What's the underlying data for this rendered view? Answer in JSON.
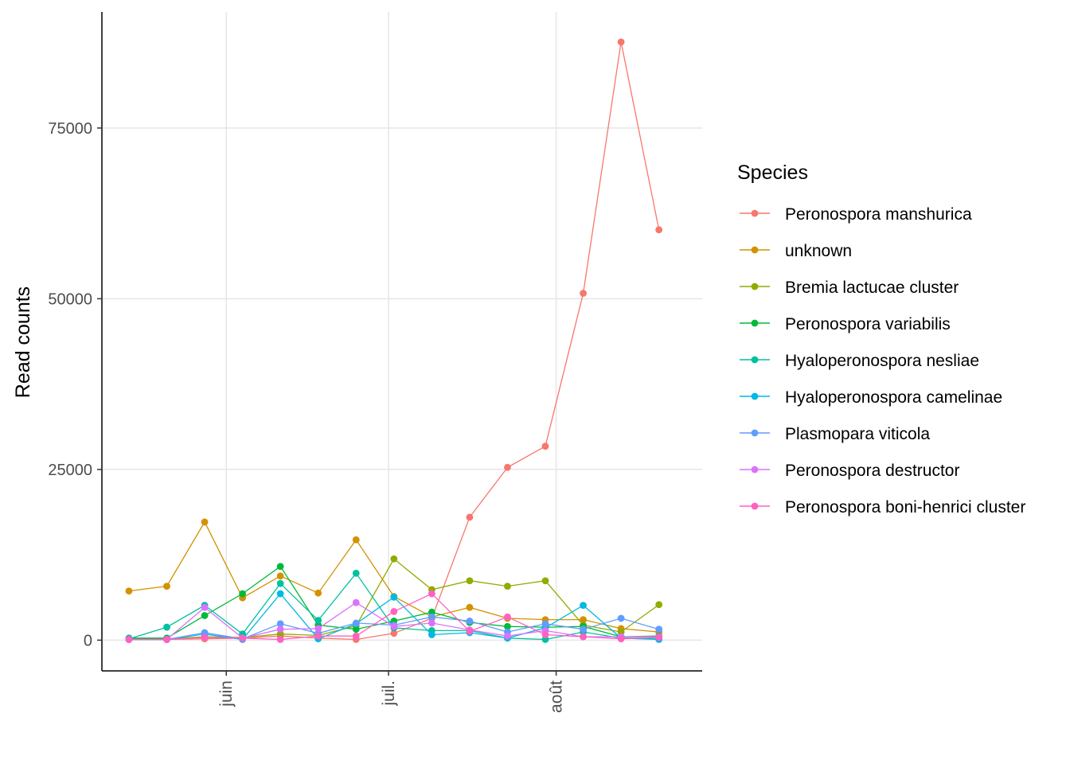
{
  "chart_data": {
    "type": "line",
    "ylabel": "Read counts",
    "ylim": [
      -4500,
      92000
    ],
    "yticks": [
      0,
      25000,
      50000,
      75000
    ],
    "xlim": [
      "2018-05-09",
      "2018-08-28"
    ],
    "xticks": [
      {
        "date": "2018-06-01",
        "label": "juin"
      },
      {
        "date": "2018-07-01",
        "label": "juil."
      },
      {
        "date": "2018-08-01",
        "label": "août"
      }
    ],
    "grid": true,
    "legend": {
      "title": "Species",
      "position": "right"
    },
    "x": [
      "2018-05-14",
      "2018-05-21",
      "2018-05-28",
      "2018-06-04",
      "2018-06-11",
      "2018-06-18",
      "2018-06-25",
      "2018-07-02",
      "2018-07-09",
      "2018-07-16",
      "2018-07-23",
      "2018-07-30",
      "2018-08-06",
      "2018-08-13",
      "2018-08-20"
    ],
    "series": [
      {
        "name": "Peronospora manshurica",
        "color": "#F8766D",
        "values": [
          100,
          100,
          200,
          300,
          600,
          300,
          100,
          1000,
          3200,
          18000,
          25300,
          28400,
          50800,
          87600,
          60100
        ]
      },
      {
        "name": "unknown",
        "color": "#D39200",
        "values": [
          7200,
          7900,
          17300,
          6200,
          9400,
          6900,
          14700,
          6400,
          3400,
          4800,
          3200,
          3000,
          3000,
          1700,
          1200
        ]
      },
      {
        "name": "Bremia lactucae cluster",
        "color": "#93AA00",
        "values": [
          200,
          200,
          500,
          400,
          900,
          700,
          2100,
          11900,
          7400,
          8700,
          7900,
          8700,
          2200,
          1200,
          5200
        ]
      },
      {
        "name": "Peronospora variabilis",
        "color": "#00BA38",
        "values": [
          300,
          300,
          3600,
          6800,
          10800,
          2200,
          1600,
          2800,
          4100,
          2600,
          2000,
          1900,
          2000,
          500,
          600
        ]
      },
      {
        "name": "Hyaloperonospora nesliae",
        "color": "#00C19F",
        "values": [
          200,
          1900,
          5100,
          900,
          8300,
          2900,
          9800,
          1800,
          1400,
          1400,
          300,
          100,
          1200,
          300,
          300
        ]
      },
      {
        "name": "Hyaloperonospora camelinae",
        "color": "#00B9E3",
        "values": [
          100,
          100,
          900,
          100,
          6800,
          200,
          2400,
          6300,
          800,
          1100,
          300,
          1800,
          5100,
          300,
          100
        ]
      },
      {
        "name": "Plasmopara viticola",
        "color": "#619CFF",
        "values": [
          100,
          100,
          1100,
          200,
          2400,
          1000,
          2500,
          2200,
          3400,
          2800,
          1200,
          2400,
          1600,
          3200,
          1600
        ]
      },
      {
        "name": "Peronospora destructor",
        "color": "#DB72FB",
        "values": [
          100,
          100,
          4800,
          300,
          1600,
          1700,
          5500,
          2000,
          2500,
          1500,
          600,
          1400,
          500,
          500,
          500
        ]
      },
      {
        "name": "Peronospora boni-henrici cluster",
        "color": "#FF61C3",
        "values": [
          100,
          100,
          400,
          300,
          100,
          600,
          600,
          4200,
          6800,
          1300,
          3400,
          800,
          500,
          200,
          400
        ]
      }
    ]
  }
}
